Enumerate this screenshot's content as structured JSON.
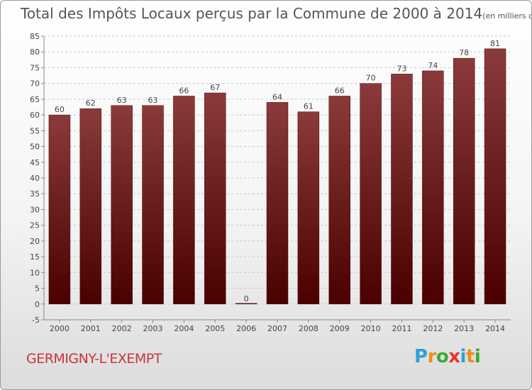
{
  "header": {
    "title": "Total des Impôts Locaux perçus par la Commune de 2000 à 2014",
    "unit": "(en milliers d'€)"
  },
  "footer": {
    "commune": "GERMIGNY-L'EXEMPT",
    "logo_letters": [
      "P",
      "r",
      "o",
      "x",
      "i",
      "t",
      "i"
    ],
    "logo_colors": [
      "#2f9fd6",
      "#f28c1b",
      "#3aaa35",
      "#e5332a",
      "#2f9fd6",
      "#f28c1b",
      "#3aaa35"
    ]
  },
  "colors": {
    "bar_top": "#8a3a3a",
    "bar_bottom": "#4a0000",
    "grid": "#c8c8c8",
    "text": "#444444"
  },
  "chart_data": {
    "type": "bar",
    "categories": [
      "2000",
      "2001",
      "2002",
      "2003",
      "2004",
      "2005",
      "2006",
      "2007",
      "2008",
      "2009",
      "2010",
      "2011",
      "2012",
      "2013",
      "2014"
    ],
    "values": [
      60,
      62,
      63,
      63,
      66,
      67,
      0,
      64,
      61,
      66,
      70,
      73,
      74,
      78,
      81
    ],
    "title": "Total des Impôts Locaux perçus par la Commune de 2000 à 2014",
    "xlabel": "",
    "ylabel": "",
    "ylim": [
      -5,
      85
    ],
    "yticks": [
      -5,
      0,
      5,
      10,
      15,
      20,
      25,
      30,
      35,
      40,
      45,
      50,
      55,
      60,
      65,
      70,
      75,
      80,
      85
    ],
    "grid": true
  }
}
